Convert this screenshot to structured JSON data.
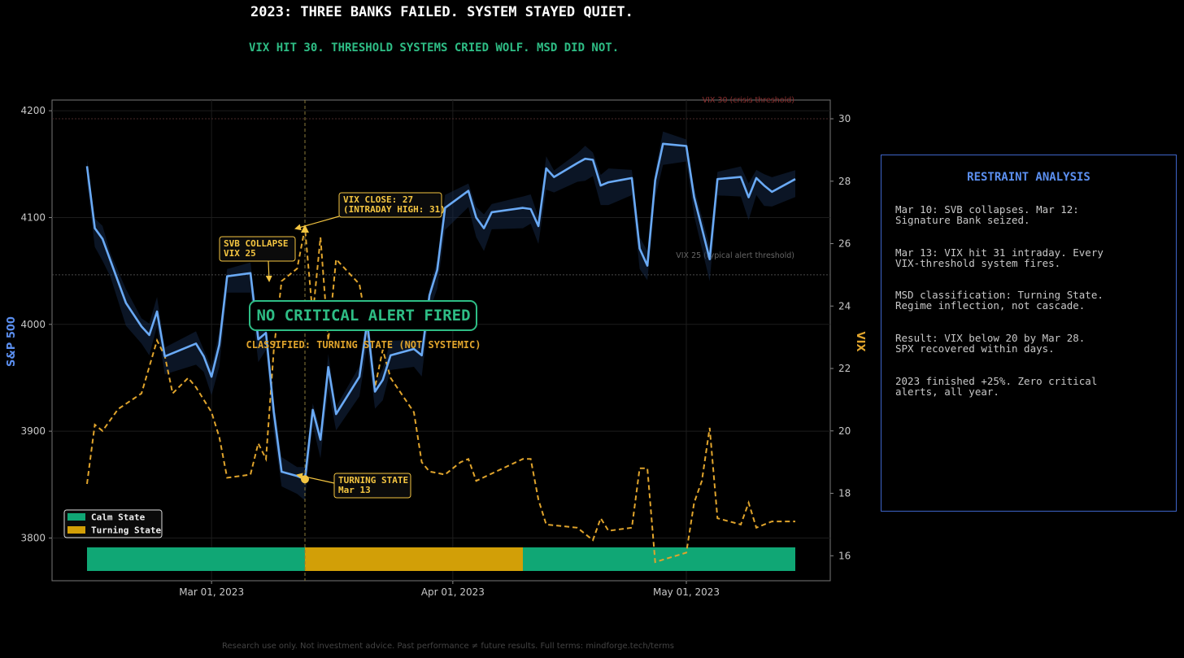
{
  "header": {
    "title": "2023: THREE BANKS FAILED. SYSTEM STAYED QUIET.",
    "subtitle": "VIX HIT 30. THRESHOLD SYSTEMS CRIED WOLF. MSD DID NOT."
  },
  "footer": "Research use only. Not investment advice. Past performance ≠ future results. Full terms: mindforge.tech/terms",
  "panel": {
    "title": "RESTRAINT ANALYSIS",
    "items": [
      "Mar 10: SVB collapses. Mar 12:\nSignature Bank seized.",
      "Mar 13: VIX hit 31 intraday. Every\nVIX-threshold system fires.",
      "MSD classification: Turning State.\nRegime inflection, not cascade.",
      "Result: VIX below 20 by Mar 28.\nSPX recovered within days.",
      "2023 finished +25%. Zero critical\nalerts, all year."
    ]
  },
  "colors": {
    "spx": "#6aaaf5",
    "vix": "#e0a42c",
    "calm": "#10a775",
    "turning": "#d29f07",
    "alert_green": "#2ebd85",
    "annotation": "#f4c541",
    "vix30_line": "#8b2e2e"
  },
  "chart_data": {
    "type": "line",
    "x_axis": {
      "ticks": [
        "Mar 01, 2023",
        "Apr 01, 2023",
        "May 01, 2023"
      ]
    },
    "y_left": {
      "label": "S&P 500",
      "range": [
        3760,
        4210
      ],
      "ticks": [
        3800,
        3900,
        4000,
        4100,
        4200
      ]
    },
    "y_right": {
      "label": "VIX",
      "range": [
        15.2,
        30.6
      ],
      "ticks": [
        16,
        18,
        20,
        22,
        24,
        26,
        28,
        30
      ]
    },
    "reference_lines": [
      {
        "axis": "vix",
        "value": 30,
        "label": "VIX 30 (crisis threshold)"
      },
      {
        "axis": "vix",
        "value": 25,
        "label": "VIX 25 (typical alert threshold)"
      }
    ],
    "event_marker": {
      "date": "2023-03-13"
    },
    "series": [
      {
        "name": "S&P 500",
        "axis": "left",
        "style": "solid",
        "points": [
          [
            "2023-02-13",
            4148
          ],
          [
            "2023-02-14",
            4090
          ],
          [
            "2023-02-15",
            4080
          ],
          [
            "2023-02-16",
            4060
          ],
          [
            "2023-02-17",
            4040
          ],
          [
            "2023-02-18",
            4020
          ],
          [
            "2023-02-20",
            3998
          ],
          [
            "2023-02-21",
            3990
          ],
          [
            "2023-02-22",
            4012
          ],
          [
            "2023-02-23",
            3970
          ],
          [
            "2023-02-27",
            3982
          ],
          [
            "2023-02-28",
            3970
          ],
          [
            "2023-03-01",
            3951
          ],
          [
            "2023-03-02",
            3981
          ],
          [
            "2023-03-03",
            4045
          ],
          [
            "2023-03-06",
            4048
          ],
          [
            "2023-03-07",
            3986
          ],
          [
            "2023-03-08",
            3992
          ],
          [
            "2023-03-09",
            3918
          ],
          [
            "2023-03-10",
            3862
          ],
          [
            "2023-03-12",
            3858
          ],
          [
            "2023-03-13",
            3855
          ],
          [
            "2023-03-14",
            3920
          ],
          [
            "2023-03-15",
            3892
          ],
          [
            "2023-03-16",
            3960
          ],
          [
            "2023-03-17",
            3916
          ],
          [
            "2023-03-20",
            3951
          ],
          [
            "2023-03-21",
            4002
          ],
          [
            "2023-03-22",
            3937
          ],
          [
            "2023-03-23",
            3948
          ],
          [
            "2023-03-24",
            3971
          ],
          [
            "2023-03-27",
            3977
          ],
          [
            "2023-03-28",
            3971
          ],
          [
            "2023-03-29",
            4027
          ],
          [
            "2023-03-30",
            4051
          ],
          [
            "2023-03-31",
            4109
          ],
          [
            "2023-04-03",
            4125
          ],
          [
            "2023-04-04",
            4100
          ],
          [
            "2023-04-05",
            4090
          ],
          [
            "2023-04-06",
            4105
          ],
          [
            "2023-04-10",
            4109
          ],
          [
            "2023-04-11",
            4108
          ],
          [
            "2023-04-12",
            4092
          ],
          [
            "2023-04-13",
            4146
          ],
          [
            "2023-04-14",
            4138
          ],
          [
            "2023-04-17",
            4151
          ],
          [
            "2023-04-18",
            4155
          ],
          [
            "2023-04-19",
            4154
          ],
          [
            "2023-04-20",
            4130
          ],
          [
            "2023-04-21",
            4133
          ],
          [
            "2023-04-24",
            4137
          ],
          [
            "2023-04-25",
            4071
          ],
          [
            "2023-04-26",
            4055
          ],
          [
            "2023-04-27",
            4135
          ],
          [
            "2023-04-28",
            4169
          ],
          [
            "2023-05-01",
            4167
          ],
          [
            "2023-05-02",
            4119
          ],
          [
            "2023-05-04",
            4061
          ],
          [
            "2023-05-05",
            4136
          ],
          [
            "2023-05-08",
            4138
          ],
          [
            "2023-05-09",
            4119
          ],
          [
            "2023-05-10",
            4137
          ],
          [
            "2023-05-11",
            4130
          ],
          [
            "2023-05-12",
            4124
          ],
          [
            "2023-05-15",
            4136
          ]
        ]
      },
      {
        "name": "VIX",
        "axis": "right",
        "style": "dashed",
        "points": [
          [
            "2023-02-13",
            18.3
          ],
          [
            "2023-02-14",
            20.2
          ],
          [
            "2023-02-15",
            20.0
          ],
          [
            "2023-02-17",
            20.7
          ],
          [
            "2023-02-20",
            21.2
          ],
          [
            "2023-02-22",
            22.9
          ],
          [
            "2023-02-23",
            22.4
          ],
          [
            "2023-02-24",
            21.2
          ],
          [
            "2023-02-26",
            21.7
          ],
          [
            "2023-02-27",
            21.4
          ],
          [
            "2023-03-01",
            20.6
          ],
          [
            "2023-03-02",
            19.8
          ],
          [
            "2023-03-03",
            18.5
          ],
          [
            "2023-03-06",
            18.6
          ],
          [
            "2023-03-07",
            19.6
          ],
          [
            "2023-03-08",
            19.1
          ],
          [
            "2023-03-09",
            22.6
          ],
          [
            "2023-03-10",
            24.8
          ],
          [
            "2023-03-12",
            25.2
          ],
          [
            "2023-03-13",
            26.5
          ],
          [
            "2023-03-14",
            23.7
          ],
          [
            "2023-03-15",
            26.2
          ],
          [
            "2023-03-16",
            22.9
          ],
          [
            "2023-03-17",
            25.5
          ],
          [
            "2023-03-20",
            24.7
          ],
          [
            "2023-03-21",
            23.3
          ],
          [
            "2023-03-22",
            21.4
          ],
          [
            "2023-03-23",
            22.6
          ],
          [
            "2023-03-24",
            21.7
          ],
          [
            "2023-03-27",
            20.6
          ],
          [
            "2023-03-28",
            19.0
          ],
          [
            "2023-03-29",
            18.7
          ],
          [
            "2023-03-31",
            18.6
          ],
          [
            "2023-04-02",
            19.0
          ],
          [
            "2023-04-03",
            19.1
          ],
          [
            "2023-04-04",
            18.4
          ],
          [
            "2023-04-10",
            19.1
          ],
          [
            "2023-04-11",
            19.1
          ],
          [
            "2023-04-12",
            17.8
          ],
          [
            "2023-04-13",
            17.0
          ],
          [
            "2023-04-17",
            16.9
          ],
          [
            "2023-04-19",
            16.5
          ],
          [
            "2023-04-20",
            17.2
          ],
          [
            "2023-04-21",
            16.8
          ],
          [
            "2023-04-24",
            16.9
          ],
          [
            "2023-04-25",
            18.8
          ],
          [
            "2023-04-26",
            18.8
          ],
          [
            "2023-04-27",
            15.8
          ],
          [
            "2023-05-01",
            16.1
          ],
          [
            "2023-05-02",
            17.7
          ],
          [
            "2023-05-03",
            18.4
          ],
          [
            "2023-05-04",
            20.1
          ],
          [
            "2023-05-05",
            17.2
          ],
          [
            "2023-05-08",
            17.0
          ],
          [
            "2023-05-09",
            17.7
          ],
          [
            "2023-05-10",
            16.9
          ],
          [
            "2023-05-11",
            17.0
          ],
          [
            "2023-05-12",
            17.1
          ],
          [
            "2023-05-15",
            17.1
          ]
        ]
      }
    ],
    "regime_bands": [
      {
        "label": "Calm State",
        "start": "2023-02-13",
        "end": "2023-03-13"
      },
      {
        "label": "Turning State",
        "start": "2023-03-13",
        "end": "2023-04-10"
      },
      {
        "label": "Calm State",
        "start": "2023-04-10",
        "end": "2023-05-15"
      }
    ],
    "legend": {
      "position": "bottom-left",
      "items": [
        {
          "label": "Calm State",
          "color": "#10a775"
        },
        {
          "label": "Turning State",
          "color": "#d29f07"
        }
      ]
    },
    "annotations": {
      "svb": {
        "lines": [
          "SVB COLLAPSE",
          "VIX 25"
        ]
      },
      "vix_close": {
        "lines": [
          "VIX CLOSE: 27",
          "(INTRADAY HIGH: 31)"
        ]
      },
      "turning": {
        "lines": [
          "TURNING STATE",
          "Mar 13"
        ]
      },
      "no_alert": "NO CRITICAL ALERT FIRED",
      "classified": "CLASSIFIED: TURNING STATE (NOT SYSTEMIC)"
    }
  }
}
